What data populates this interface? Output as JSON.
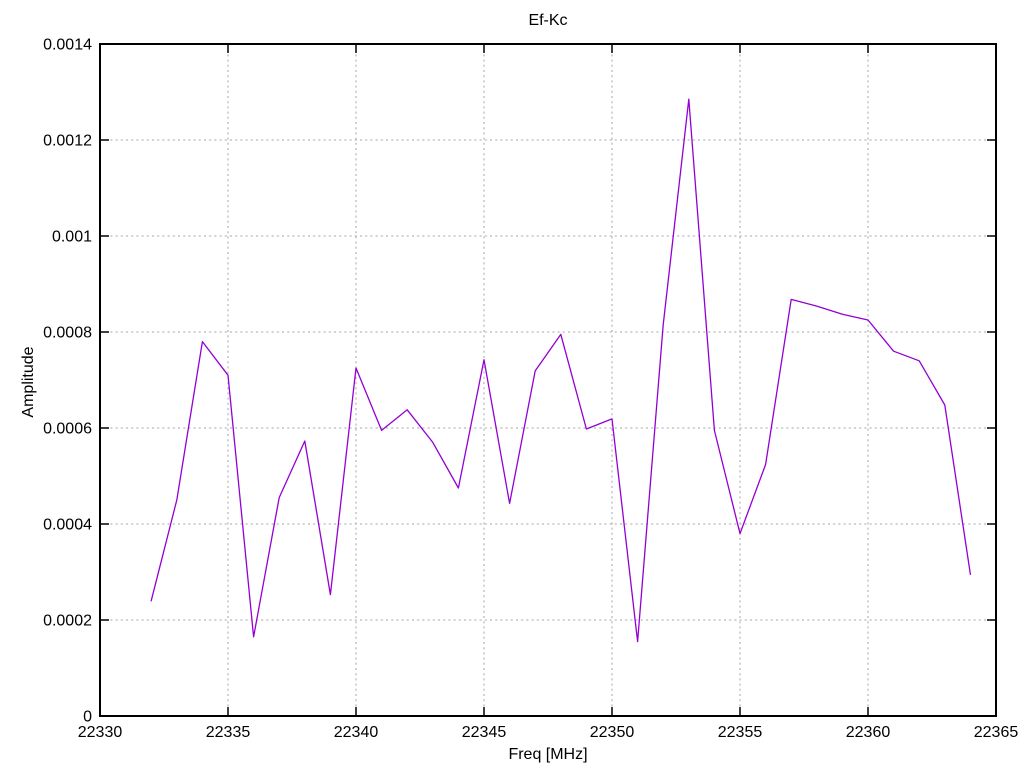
{
  "chart_data": {
    "type": "line",
    "title": "Ef-Kc",
    "xlabel": "Freq [MHz]",
    "ylabel": "Amplitude",
    "x_range": [
      22330,
      22365
    ],
    "y_range": [
      0,
      0.0014
    ],
    "grid": "dotted",
    "legend_position": "none",
    "x_ticks": [
      {
        "value": 22330,
        "label": "22330"
      },
      {
        "value": 22335,
        "label": "22335"
      },
      {
        "value": 22340,
        "label": "22340"
      },
      {
        "value": 22345,
        "label": "22345"
      },
      {
        "value": 22350,
        "label": "22350"
      },
      {
        "value": 22355,
        "label": "22355"
      },
      {
        "value": 22360,
        "label": "22360"
      },
      {
        "value": 22365,
        "label": "22365"
      }
    ],
    "y_ticks": [
      {
        "value": 0,
        "label": "0"
      },
      {
        "value": 0.0002,
        "label": "0.0002"
      },
      {
        "value": 0.0004,
        "label": "0.0004"
      },
      {
        "value": 0.0006,
        "label": "0.0006"
      },
      {
        "value": 0.0008,
        "label": "0.0008"
      },
      {
        "value": 0.001,
        "label": "0.001"
      },
      {
        "value": 0.0012,
        "label": "0.0012"
      },
      {
        "value": 0.0014,
        "label": "0.0014"
      }
    ],
    "series": [
      {
        "name": "Ef-Kc",
        "color": "#9400d3",
        "x": [
          22332,
          22333,
          22334,
          22335,
          22336,
          22337,
          22338,
          22339,
          22340,
          22341,
          22342,
          22343,
          22344,
          22345,
          22346,
          22347,
          22348,
          22349,
          22350,
          22351,
          22352,
          22353,
          22354,
          22355,
          22356,
          22357,
          22358,
          22359,
          22360,
          22361,
          22362,
          22363,
          22364
        ],
        "y": [
          0.00024,
          0.00045,
          0.00078,
          0.00071,
          0.000165,
          0.000455,
          0.000573,
          0.000253,
          0.000725,
          0.000595,
          0.000638,
          0.00057,
          0.000475,
          0.000742,
          0.000443,
          0.000719,
          0.000795,
          0.000598,
          0.000619,
          0.000155,
          0.000815,
          0.001285,
          0.000595,
          0.00038,
          0.000524,
          0.000868,
          0.000854,
          0.000837,
          0.000825,
          0.00076,
          0.00074,
          0.000648,
          0.000295
        ]
      }
    ],
    "colors": {
      "line": "#9400d3",
      "border": "#000000",
      "grid": "#a6a6a6",
      "text": "#000000",
      "background": "#ffffff"
    }
  }
}
